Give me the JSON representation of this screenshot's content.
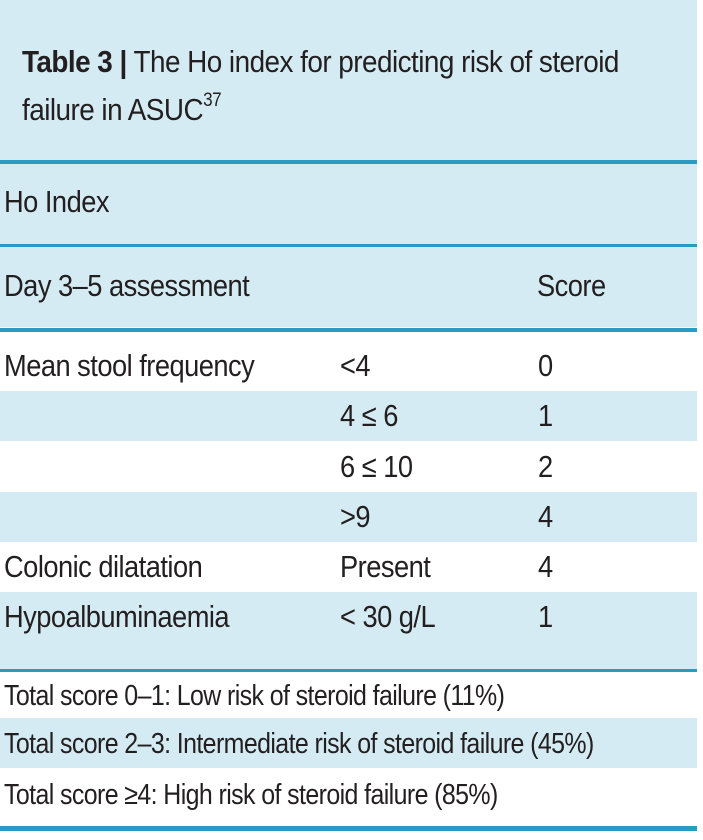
{
  "title": {
    "label": "Table 3 |",
    "text": "The Ho index for predicting risk of steroid",
    "text_line2": "failure in ASUC",
    "reference": "37"
  },
  "section_header": "Ho Index",
  "columns": {
    "assessment": "Day 3–5 assessment",
    "score": "Score"
  },
  "rows": [
    {
      "parameter": "Mean stool frequency",
      "value": "<4",
      "score": "0"
    },
    {
      "parameter": "",
      "value": "4 ≤ 6",
      "score": "1"
    },
    {
      "parameter": "",
      "value": "6 ≤ 10",
      "score": "2"
    },
    {
      "parameter": "",
      "value": ">9",
      "score": "4"
    },
    {
      "parameter": "Colonic dilatation",
      "value": "Present",
      "score": "4"
    },
    {
      "parameter": "Hypoalbuminaemia",
      "value": "< 30 g/L",
      "score": "1"
    }
  ],
  "footer": [
    "Total score 0–1: Low risk of steroid failure (11%)",
    "Total score 2–3: Intermediate risk of steroid failure (45%)",
    "Total score ≥4: High risk of steroid failure (85%)"
  ],
  "colors": {
    "band": "#d5ebf3",
    "rule": "#2b9bc5",
    "text": "#231f20"
  }
}
